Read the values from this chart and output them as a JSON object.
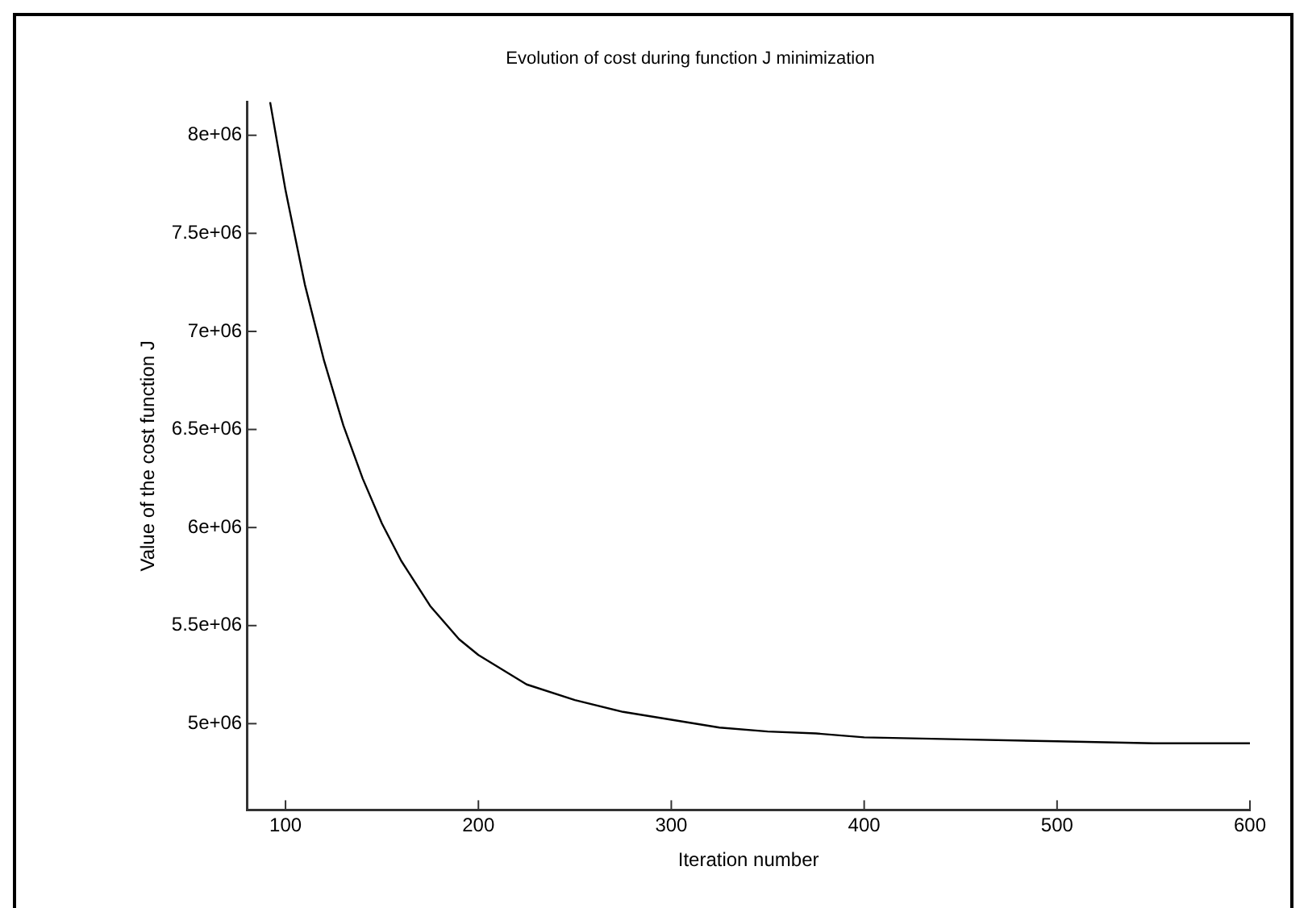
{
  "chart_data": {
    "type": "line",
    "title": "Evolution of cost during function J minimization",
    "xlabel": "Iteration number",
    "ylabel": "Value of the cost function J",
    "x": [
      92,
      100,
      110,
      120,
      130,
      140,
      150,
      160,
      175,
      190,
      200,
      225,
      250,
      275,
      300,
      325,
      350,
      375,
      400,
      450,
      500,
      550,
      600
    ],
    "series": [
      {
        "color": "#000000",
        "values": [
          8170000,
          7720000,
          7240000,
          6850000,
          6520000,
          6250000,
          6020000,
          5830000,
          5600000,
          5430000,
          5350000,
          5200000,
          5120000,
          5060000,
          5020000,
          4980000,
          4960000,
          4950000,
          4930000,
          4920000,
          4910000,
          4900000,
          4900000
        ]
      }
    ],
    "xlim": [
      80,
      600
    ],
    "xticks": [
      100,
      200,
      300,
      400,
      500,
      600
    ],
    "ylim": [
      4560000,
      8170000
    ],
    "yticks": [
      {
        "value": 5000000,
        "label": "5e+06"
      },
      {
        "value": 5500000,
        "label": "5.5e+06"
      },
      {
        "value": 6000000,
        "label": "6e+06"
      },
      {
        "value": 6500000,
        "label": "6.5e+06"
      },
      {
        "value": 7000000,
        "label": "7e+06"
      },
      {
        "value": 7500000,
        "label": "7.5e+06"
      },
      {
        "value": 8000000,
        "label": "8e+06"
      }
    ],
    "grid": false,
    "legend": false,
    "marker": "none",
    "line_style": "solid"
  }
}
